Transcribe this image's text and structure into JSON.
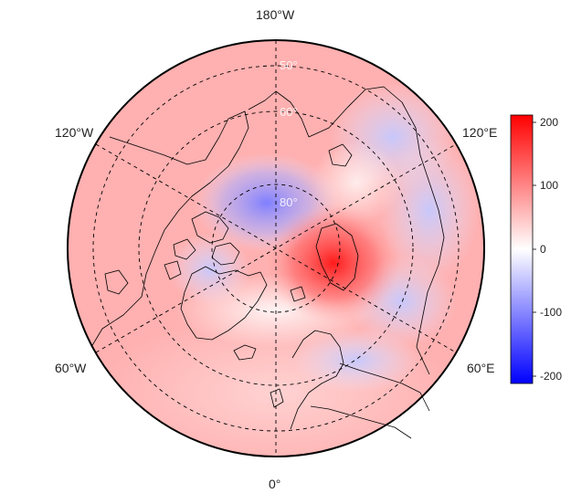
{
  "map": {
    "projection": "north-polar-stereographic",
    "longitude_labels": {
      "top": "180°W",
      "bottom": "0°",
      "upper_left": "120°W",
      "upper_right": "120°E",
      "lower_left": "60°W",
      "lower_right": "60°E"
    },
    "latitude_labels": [
      "50°",
      "60°",
      "80°"
    ],
    "colors": {
      "negative_max": "#0000ff",
      "neutral": "#ffffff",
      "positive_max": "#ff0000",
      "coastline": "#000000",
      "grid": "#000000"
    }
  },
  "colorbar": {
    "min": -200,
    "max": 200,
    "ticks": [
      "200",
      "100",
      "0",
      "-100",
      "-200"
    ]
  }
}
